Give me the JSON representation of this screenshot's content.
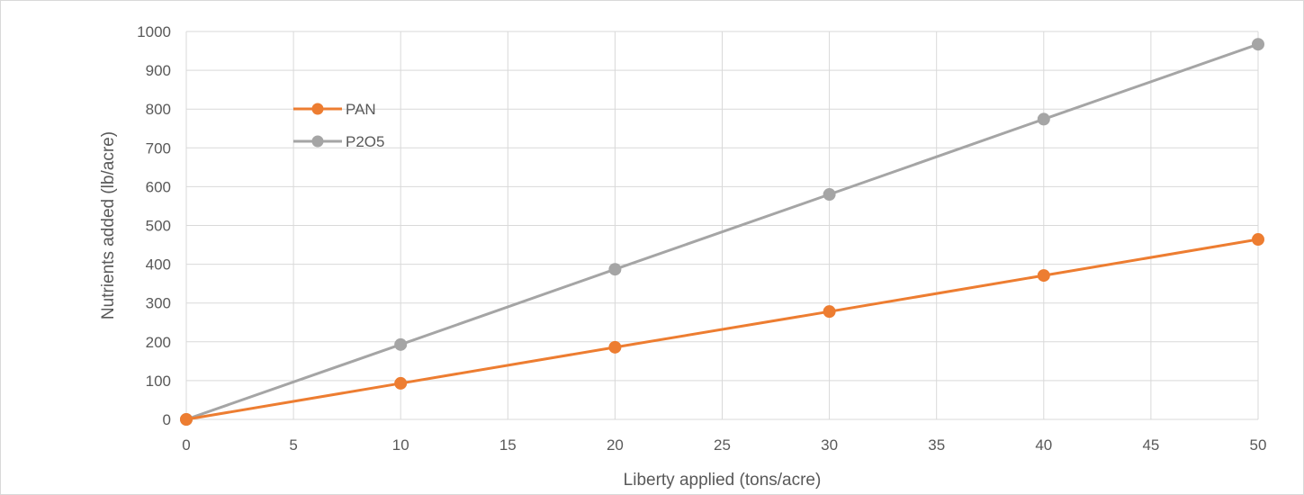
{
  "chart_data": {
    "type": "line",
    "title": "",
    "xlabel": "Liberty applied (tons/acre)",
    "ylabel": "Nutrients added (lb/acre)",
    "xlim": [
      0,
      50
    ],
    "ylim": [
      0,
      1000
    ],
    "x_ticks": [
      "0",
      "5",
      "10",
      "15",
      "20",
      "25",
      "30",
      "35",
      "40",
      "45",
      "50"
    ],
    "y_ticks": [
      "0",
      "100",
      "200",
      "300",
      "400",
      "500",
      "600",
      "700",
      "800",
      "900",
      "1000"
    ],
    "grid": true,
    "legend_position": "top-left",
    "x": [
      0,
      10,
      20,
      30,
      40,
      50
    ],
    "series": [
      {
        "name": "PAN",
        "color": "#ed7d31",
        "values": [
          0,
          93,
          186,
          278,
          371,
          464
        ]
      },
      {
        "name": "P2O5",
        "color": "#a5a5a5",
        "values": [
          0,
          193,
          387,
          580,
          774,
          967
        ]
      }
    ]
  }
}
